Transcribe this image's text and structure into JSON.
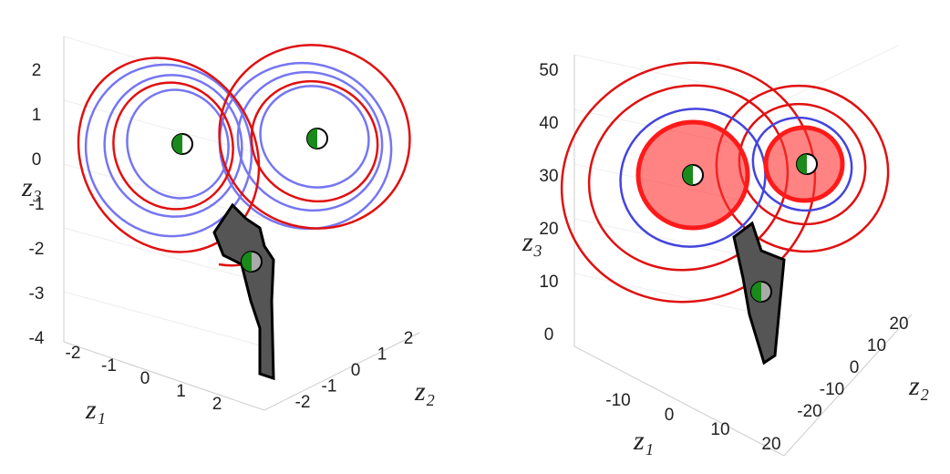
{
  "panels": [
    {
      "z1": {
        "label": "z₁",
        "ticks": [
          -2,
          -1,
          0,
          1,
          2
        ]
      },
      "z2": {
        "label": "z₂",
        "ticks": [
          -2,
          -1,
          0,
          1,
          2
        ]
      },
      "z3": {
        "label": "z₃",
        "ticks": [
          2,
          1,
          0,
          -1,
          -2,
          -3,
          -4
        ]
      }
    },
    {
      "z1": {
        "label": "z₁",
        "ticks": [
          -10,
          0,
          10,
          20
        ]
      },
      "z2": {
        "label": "z₂",
        "ticks": [
          -20,
          -10,
          0,
          10,
          20
        ]
      },
      "z3": {
        "label": "z₃",
        "ticks": [
          50,
          40,
          30,
          20,
          10,
          0
        ]
      }
    }
  ]
}
